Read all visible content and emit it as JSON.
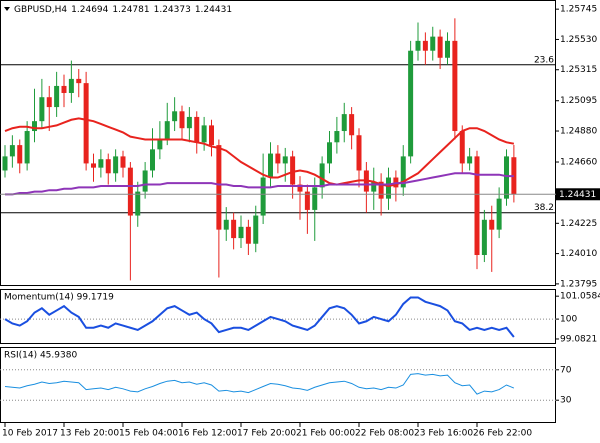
{
  "chart_data": [
    {
      "type": "candlestick",
      "title": "GBPUSD,H4",
      "header_values": [
        1.24694,
        1.24781,
        1.24373,
        1.24431
      ],
      "x_labels": [
        {
          "index": 0,
          "label": "10 Feb 2017"
        },
        {
          "index": 8,
          "label": "13 Feb 20:00"
        },
        {
          "index": 16,
          "label": "15 Feb 04:00"
        },
        {
          "index": 24,
          "label": "16 Feb 12:00"
        },
        {
          "index": 32,
          "label": "17 Feb 20:00"
        },
        {
          "index": 40,
          "label": "21 Feb 00:00"
        },
        {
          "index": 48,
          "label": "22 Feb 08:00"
        },
        {
          "index": 56,
          "label": "23 Feb 16:00"
        },
        {
          "index": 64,
          "label": "26 Feb 22:00"
        }
      ],
      "open": [
        1.246,
        1.247,
        1.2478,
        1.2465,
        1.2488,
        1.2495,
        1.2512,
        1.2505,
        1.252,
        1.2515,
        1.2525,
        1.2522,
        1.2465,
        1.2462,
        1.2468,
        1.2458,
        1.247,
        1.2462,
        1.2428,
        1.2445,
        1.246,
        1.2475,
        1.2482,
        1.2495,
        1.2502,
        1.249,
        1.2498,
        1.248,
        1.2492,
        1.2478,
        1.2418,
        1.2425,
        1.2412,
        1.242,
        1.2408,
        1.2428,
        1.2455,
        1.2472,
        1.2465,
        1.247,
        1.245,
        1.2445,
        1.2432,
        1.2448,
        1.2465,
        1.248,
        1.2488,
        1.25,
        1.2485,
        1.246,
        1.2445,
        1.2452,
        1.244,
        1.2455,
        1.2448,
        1.247,
        1.2545,
        1.2552,
        1.2545,
        1.2555,
        1.254,
        1.2552,
        1.2488,
        1.2465,
        1.247,
        1.24,
        1.2425,
        1.2418,
        1.244,
        1.24694
      ],
      "high": [
        1.2478,
        1.2485,
        1.2482,
        1.2495,
        1.2518,
        1.2525,
        1.252,
        1.253,
        1.2528,
        1.2538,
        1.2532,
        1.253,
        1.2472,
        1.2475,
        1.2472,
        1.2475,
        1.2474,
        1.2466,
        1.2452,
        1.2466,
        1.249,
        1.2495,
        1.2508,
        1.2512,
        1.2506,
        1.2505,
        1.2502,
        1.2498,
        1.2496,
        1.2482,
        1.2434,
        1.243,
        1.2428,
        1.2425,
        1.2435,
        1.2472,
        1.248,
        1.2478,
        1.2476,
        1.2474,
        1.2456,
        1.245,
        1.2455,
        1.247,
        1.2488,
        1.2498,
        1.2508,
        1.2505,
        1.249,
        1.2466,
        1.2462,
        1.2458,
        1.2462,
        1.246,
        1.2478,
        1.2552,
        1.2565,
        1.2558,
        1.2562,
        1.256,
        1.2558,
        1.2568,
        1.2492,
        1.2476,
        1.2474,
        1.2432,
        1.2435,
        1.2448,
        1.2475,
        1.24781
      ],
      "low": [
        1.2455,
        1.2462,
        1.2458,
        1.246,
        1.248,
        1.249,
        1.2488,
        1.2498,
        1.2505,
        1.2508,
        1.2512,
        1.246,
        1.2452,
        1.2455,
        1.245,
        1.2452,
        1.2455,
        1.2382,
        1.242,
        1.244,
        1.2455,
        1.2468,
        1.2478,
        1.2488,
        1.2482,
        1.248,
        1.2472,
        1.2474,
        1.247,
        1.2384,
        1.241,
        1.2404,
        1.2405,
        1.24,
        1.2402,
        1.2422,
        1.2448,
        1.2458,
        1.2452,
        1.244,
        1.2425,
        1.2415,
        1.241,
        1.244,
        1.2458,
        1.2472,
        1.248,
        1.2475,
        1.2448,
        1.243,
        1.2432,
        1.2428,
        1.2432,
        1.2438,
        1.2442,
        1.2465,
        1.2538,
        1.2535,
        1.2538,
        1.2532,
        1.2535,
        1.2482,
        1.2458,
        1.246,
        1.239,
        1.2395,
        1.2388,
        1.2412,
        1.2435,
        1.24373
      ],
      "close": [
        1.247,
        1.2478,
        1.2465,
        1.2488,
        1.2495,
        1.2512,
        1.2505,
        1.252,
        1.2515,
        1.2525,
        1.2522,
        1.2465,
        1.2462,
        1.2468,
        1.2458,
        1.247,
        1.2462,
        1.2428,
        1.2445,
        1.246,
        1.2475,
        1.2482,
        1.2495,
        1.2502,
        1.249,
        1.2498,
        1.248,
        1.2492,
        1.2478,
        1.2418,
        1.2425,
        1.2412,
        1.242,
        1.2408,
        1.2428,
        1.2455,
        1.2472,
        1.2465,
        1.247,
        1.245,
        1.2445,
        1.2432,
        1.2448,
        1.2465,
        1.248,
        1.2488,
        1.25,
        1.2485,
        1.246,
        1.2445,
        1.2452,
        1.244,
        1.2455,
        1.2448,
        1.247,
        1.2545,
        1.2552,
        1.2545,
        1.2555,
        1.254,
        1.2552,
        1.2488,
        1.2465,
        1.247,
        1.24,
        1.2425,
        1.2418,
        1.244,
        1.247,
        1.24431
      ],
      "up_color": "#1f9b3b",
      "down_color": "#e8231e",
      "series": [
        {
          "color": "#e8231e",
          "values": [
            1.2488,
            1.249,
            1.2491,
            1.2491,
            1.249,
            1.249,
            1.2491,
            1.2492,
            1.2494,
            1.2496,
            1.2497,
            1.2496,
            1.2495,
            1.2493,
            1.2491,
            1.2489,
            1.2487,
            1.2484,
            1.2483,
            1.2482,
            1.2482,
            1.2482,
            1.2482,
            1.2482,
            1.2482,
            1.2481,
            1.248,
            1.2479,
            1.2477,
            1.2476,
            1.2474,
            1.247,
            1.2466,
            1.2463,
            1.246,
            1.2457,
            1.2455,
            1.2455,
            1.2457,
            1.2459,
            1.246,
            1.2459,
            1.2457,
            1.2454,
            1.2451,
            1.245,
            1.2451,
            1.2452,
            1.2453,
            1.2453,
            1.2452,
            1.245,
            1.2449,
            1.245,
            1.2452,
            1.2455,
            1.2458,
            1.2463,
            1.2468,
            1.2473,
            1.2478,
            1.2483,
            1.2488,
            1.249,
            1.249,
            1.2488,
            1.2485,
            1.2482,
            1.248,
            1.2479
          ]
        },
        {
          "color": "#8e35b8",
          "values": [
            1.2443,
            1.2443,
            1.2444,
            1.2444,
            1.2445,
            1.2445,
            1.2446,
            1.2446,
            1.2447,
            1.2447,
            1.2448,
            1.2448,
            1.2448,
            1.2449,
            1.2449,
            1.2449,
            1.2449,
            1.2449,
            1.2449,
            1.245,
            1.245,
            1.245,
            1.2451,
            1.2451,
            1.2451,
            1.2451,
            1.2451,
            1.2451,
            1.2451,
            1.245,
            1.245,
            1.2449,
            1.2449,
            1.2448,
            1.2448,
            1.2448,
            1.2448,
            1.2449,
            1.2449,
            1.2449,
            1.2449,
            1.2449,
            1.2449,
            1.2449,
            1.245,
            1.245,
            1.245,
            1.245,
            1.245,
            1.245,
            1.245,
            1.245,
            1.245,
            1.2451,
            1.2451,
            1.2452,
            1.2453,
            1.2454,
            1.2455,
            1.2456,
            1.2457,
            1.2458,
            1.2458,
            1.2458,
            1.2457,
            1.2457,
            1.2457,
            1.2457,
            1.2456,
            1.2456
          ]
        }
      ],
      "hlines": [
        {
          "label": "23.6",
          "value": 1.2535
        },
        {
          "label": "38.2",
          "value": 1.243
        }
      ],
      "last_price": 1.24431,
      "ylim": [
        1.2378,
        1.2581
      ],
      "yticks": [
        1.25745,
        {
          "value": 1.2553,
          "label": "1.25530"
        },
        1.25315,
        1.25095,
        {
          "value": 1.2488,
          "label": "1.24880"
        },
        {
          "value": 1.2466,
          "label": "1.24660"
        },
        1.24225,
        {
          "value": 1.2401,
          "label": "1.24010"
        },
        1.23795
      ]
    },
    {
      "type": "line",
      "title": "Momentum(14) 99.1719",
      "color": "#1a4fe0",
      "values": [
        100.0,
        99.8,
        99.7,
        99.9,
        100.3,
        100.5,
        100.2,
        100.4,
        100.6,
        100.3,
        100.1,
        99.6,
        99.6,
        99.7,
        99.6,
        99.8,
        99.7,
        99.6,
        99.5,
        99.7,
        99.9,
        100.2,
        100.5,
        100.6,
        100.4,
        100.2,
        100.3,
        100.0,
        99.8,
        99.4,
        99.5,
        99.6,
        99.6,
        99.5,
        99.7,
        99.9,
        100.1,
        100.0,
        99.9,
        99.7,
        99.6,
        99.5,
        99.7,
        100.1,
        100.5,
        100.6,
        100.5,
        100.2,
        99.8,
        99.9,
        100.1,
        100.0,
        99.9,
        100.2,
        100.7,
        101.0,
        101.0,
        100.8,
        100.7,
        100.6,
        100.4,
        99.9,
        99.8,
        99.5,
        99.6,
        99.5,
        99.6,
        99.5,
        99.6,
        99.1719
      ],
      "levels": [
        100
      ],
      "ylim": [
        98.85,
        101.39
      ],
      "yticks": [
        101.0584,
        100,
        99.0821
      ]
    },
    {
      "type": "line",
      "title": "RSI(14) 45.9380",
      "color": "#1a8fe0",
      "values": [
        48,
        47,
        46,
        49,
        51,
        54,
        52,
        53,
        55,
        54,
        53,
        44,
        45,
        46,
        44,
        47,
        45,
        42,
        41,
        45,
        48,
        52,
        55,
        56,
        53,
        54,
        51,
        53,
        50,
        42,
        43,
        41,
        42,
        40,
        44,
        48,
        52,
        51,
        49,
        46,
        45,
        43,
        47,
        50,
        53,
        54,
        55,
        52,
        47,
        45,
        46,
        44,
        47,
        46,
        50,
        64,
        65,
        63,
        64,
        62,
        63,
        53,
        49,
        50,
        38,
        42,
        41,
        44,
        50,
        45.938
      ],
      "levels": [
        70,
        30
      ],
      "ylim": [
        0,
        100
      ],
      "yticks": [
        70,
        30
      ]
    }
  ]
}
